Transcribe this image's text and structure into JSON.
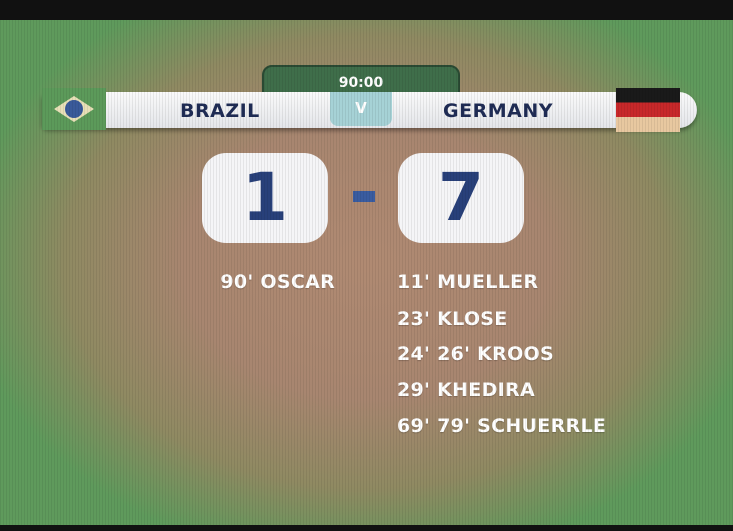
{
  "match": {
    "clock": "90:00",
    "home": "BRAZIL",
    "away": "GERMANY",
    "separator": "V",
    "home_score": "1",
    "away_score": "7"
  },
  "home_scorers": [
    "90' OSCAR"
  ],
  "away_scorers": [
    "11' MUELLER",
    "23' KLOSE",
    "24' 26' KROOS",
    "29' KHEDIRA",
    "69' 79' SCHUERRLE"
  ],
  "colors": {
    "bar": "#f2f3f5",
    "team_text": "#1f2c55",
    "score_text": "#28407a",
    "clock_tab": "#3f6e4a"
  },
  "icons": {
    "home_flag": "brazil-flag",
    "away_flag": "germany-flag"
  }
}
